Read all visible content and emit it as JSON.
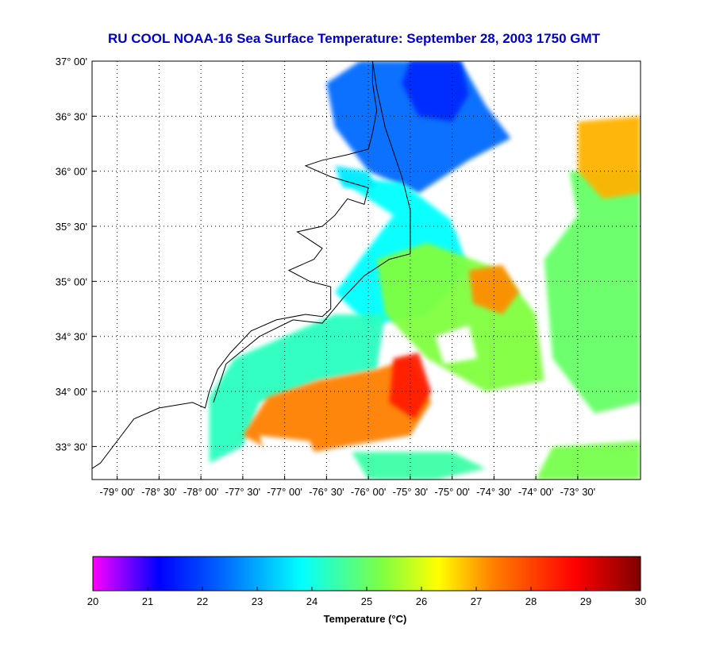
{
  "title": "RU COOL  NOAA-16  Sea Surface Temperature:  September 28, 2003 1750 GMT",
  "map": {
    "lon_range": [
      -79.3,
      -72.75
    ],
    "lat_range": [
      33.2,
      37.0
    ],
    "lat_ticks": [
      {
        "value": 37.0,
        "label": "37° 00'"
      },
      {
        "value": 36.5,
        "label": "36° 30'"
      },
      {
        "value": 36.0,
        "label": "36° 00'"
      },
      {
        "value": 35.5,
        "label": "35° 30'"
      },
      {
        "value": 35.0,
        "label": "35° 00'"
      },
      {
        "value": 34.5,
        "label": "34° 30'"
      },
      {
        "value": 34.0,
        "label": "34° 00'"
      },
      {
        "value": 33.5,
        "label": "33° 30'"
      }
    ],
    "lon_ticks": [
      {
        "value": -79.0,
        "label": "-79° 00'"
      },
      {
        "value": -78.5,
        "label": "-78° 30'"
      },
      {
        "value": -78.0,
        "label": "-78° 00'"
      },
      {
        "value": -77.5,
        "label": "-77° 30'"
      },
      {
        "value": -77.0,
        "label": "-77° 00'"
      },
      {
        "value": -76.5,
        "label": "-76° 30'"
      },
      {
        "value": -76.0,
        "label": "-76° 00'"
      },
      {
        "value": -75.5,
        "label": "-75° 30'"
      },
      {
        "value": -75.0,
        "label": "-75° 00'"
      },
      {
        "value": -74.5,
        "label": "-74° 30'"
      },
      {
        "value": -74.0,
        "label": "-74° 00'"
      },
      {
        "value": -73.5,
        "label": "-73° 30'"
      }
    ],
    "grid": "dotted"
  },
  "colorbar": {
    "min": 20,
    "max": 30,
    "ticks": [
      "20",
      "21",
      "22",
      "23",
      "24",
      "25",
      "26",
      "27",
      "28",
      "29",
      "30"
    ],
    "label": "Temperature (°C)",
    "stops": [
      {
        "t": 20.0,
        "color": "#ff00ff"
      },
      {
        "t": 21.2,
        "color": "#0000ff"
      },
      {
        "t": 22.3,
        "color": "#0060ff"
      },
      {
        "t": 23.8,
        "color": "#00ffff"
      },
      {
        "t": 25.3,
        "color": "#80ff40"
      },
      {
        "t": 26.3,
        "color": "#ffff00"
      },
      {
        "t": 27.3,
        "color": "#ff8000"
      },
      {
        "t": 28.8,
        "color": "#ff0000"
      },
      {
        "t": 30.0,
        "color": "#800000"
      }
    ]
  },
  "sst_regions": [
    {
      "name": "north-blue",
      "temp": 22.4,
      "pts": [
        [
          -76.1,
          37.0
        ],
        [
          -74.9,
          37.0
        ],
        [
          -74.6,
          36.6
        ],
        [
          -74.3,
          36.3
        ],
        [
          -74.8,
          36.1
        ],
        [
          -75.4,
          35.8
        ],
        [
          -76.0,
          36.0
        ],
        [
          -76.4,
          36.4
        ],
        [
          -76.5,
          36.8
        ]
      ]
    },
    {
      "name": "north-deep-blue",
      "temp": 21.7,
      "pts": [
        [
          -75.5,
          37.0
        ],
        [
          -74.9,
          37.0
        ],
        [
          -74.8,
          36.7
        ],
        [
          -75.0,
          36.45
        ],
        [
          -75.4,
          36.5
        ],
        [
          -75.6,
          36.8
        ]
      ]
    },
    {
      "name": "cape-hatteras-cyan",
      "temp": 23.8,
      "pts": [
        [
          -76.4,
          35.95
        ],
        [
          -75.6,
          35.9
        ],
        [
          -75.0,
          35.55
        ],
        [
          -74.8,
          35.1
        ],
        [
          -75.3,
          34.7
        ],
        [
          -76.0,
          34.6
        ],
        [
          -76.4,
          34.9
        ],
        [
          -76.0,
          35.3
        ],
        [
          -75.7,
          35.6
        ]
      ]
    },
    {
      "name": "offshore-green",
      "temp": 25.3,
      "pts": [
        [
          -75.9,
          35.2
        ],
        [
          -75.3,
          35.35
        ],
        [
          -74.4,
          35.1
        ],
        [
          -74.0,
          34.7
        ],
        [
          -73.9,
          34.1
        ],
        [
          -74.6,
          34.0
        ],
        [
          -75.3,
          34.3
        ],
        [
          -75.8,
          34.7
        ]
      ]
    },
    {
      "name": "east-green",
      "temp": 25.0,
      "pts": [
        [
          -73.6,
          36.0
        ],
        [
          -72.75,
          36.0
        ],
        [
          -72.75,
          33.9
        ],
        [
          -73.3,
          33.8
        ],
        [
          -73.8,
          34.3
        ],
        [
          -73.9,
          35.2
        ],
        [
          -73.5,
          35.6
        ]
      ]
    },
    {
      "name": "east-orange",
      "temp": 26.9,
      "pts": [
        [
          -73.5,
          36.45
        ],
        [
          -72.75,
          36.5
        ],
        [
          -72.75,
          35.8
        ],
        [
          -73.2,
          35.75
        ],
        [
          -73.5,
          36.0
        ]
      ]
    },
    {
      "name": "mid-orange-patch",
      "temp": 27.2,
      "pts": [
        [
          -74.8,
          35.1
        ],
        [
          -74.4,
          35.15
        ],
        [
          -74.2,
          34.9
        ],
        [
          -74.4,
          34.7
        ],
        [
          -74.75,
          34.8
        ]
      ]
    },
    {
      "name": "onslow-cyan",
      "temp": 24.3,
      "pts": [
        [
          -77.9,
          33.95
        ],
        [
          -77.6,
          34.3
        ],
        [
          -77.0,
          34.5
        ],
        [
          -76.4,
          34.7
        ],
        [
          -75.8,
          34.7
        ],
        [
          -75.9,
          34.2
        ],
        [
          -76.6,
          34.1
        ],
        [
          -77.3,
          33.9
        ],
        [
          -77.5,
          33.5
        ],
        [
          -77.9,
          33.35
        ]
      ]
    },
    {
      "name": "gulf-stream-orange",
      "temp": 27.3,
      "pts": [
        [
          -77.5,
          33.6
        ],
        [
          -77.2,
          33.95
        ],
        [
          -76.6,
          34.1
        ],
        [
          -75.9,
          34.2
        ],
        [
          -75.5,
          34.3
        ],
        [
          -75.25,
          33.9
        ],
        [
          -75.5,
          33.6
        ],
        [
          -76.3,
          33.5
        ],
        [
          -77.0,
          33.4
        ]
      ]
    },
    {
      "name": "gulf-stream-red",
      "temp": 28.5,
      "pts": [
        [
          -75.7,
          34.3
        ],
        [
          -75.4,
          34.35
        ],
        [
          -75.25,
          34.0
        ],
        [
          -75.45,
          33.75
        ],
        [
          -75.75,
          33.9
        ]
      ]
    },
    {
      "name": "south-cyan",
      "temp": 24.5,
      "pts": [
        [
          -76.2,
          33.45
        ],
        [
          -75.0,
          33.45
        ],
        [
          -74.6,
          33.3
        ],
        [
          -75.2,
          33.2
        ],
        [
          -76.0,
          33.2
        ]
      ]
    },
    {
      "name": "southeast-green",
      "temp": 25.2,
      "pts": [
        [
          -73.8,
          33.5
        ],
        [
          -72.75,
          33.55
        ],
        [
          -72.75,
          33.2
        ],
        [
          -74.0,
          33.2
        ]
      ]
    },
    {
      "name": "pamlico-cyan",
      "temp": 23.6,
      "pts": [
        [
          -76.4,
          36.05
        ],
        [
          -76.0,
          36.0
        ],
        [
          -75.9,
          35.85
        ],
        [
          -76.3,
          35.85
        ]
      ]
    }
  ],
  "cloud_gaps": [
    {
      "pts": [
        [
          -74.9,
          35.75
        ],
        [
          -73.9,
          35.85
        ],
        [
          -73.8,
          35.35
        ],
        [
          -74.5,
          35.35
        ],
        [
          -75.0,
          35.5
        ]
      ]
    },
    {
      "pts": [
        [
          -77.3,
          33.6
        ],
        [
          -76.7,
          33.55
        ],
        [
          -76.6,
          33.35
        ],
        [
          -77.2,
          33.3
        ]
      ]
    },
    {
      "pts": [
        [
          -75.2,
          34.5
        ],
        [
          -74.8,
          34.6
        ],
        [
          -74.7,
          34.3
        ],
        [
          -75.1,
          34.25
        ]
      ]
    },
    {
      "pts": [
        [
          -74.3,
          33.9
        ],
        [
          -73.5,
          33.95
        ],
        [
          -73.4,
          33.55
        ],
        [
          -74.1,
          33.55
        ]
      ]
    }
  ],
  "coastline": {
    "mainland": [
      [
        -79.3,
        33.3
      ],
      [
        -79.2,
        33.35
      ],
      [
        -79.0,
        33.55
      ],
      [
        -78.8,
        33.75
      ],
      [
        -78.5,
        33.85
      ],
      [
        -78.1,
        33.9
      ],
      [
        -77.95,
        33.85
      ],
      [
        -77.9,
        34.0
      ],
      [
        -77.8,
        34.2
      ],
      [
        -77.65,
        34.35
      ],
      [
        -77.4,
        34.55
      ],
      [
        -77.1,
        34.65
      ],
      [
        -76.75,
        34.7
      ],
      [
        -76.55,
        34.68
      ],
      [
        -76.45,
        34.75
      ],
      [
        -76.45,
        34.95
      ],
      [
        -76.7,
        35.0
      ],
      [
        -76.95,
        35.1
      ],
      [
        -76.65,
        35.2
      ],
      [
        -76.55,
        35.3
      ],
      [
        -76.85,
        35.45
      ],
      [
        -76.55,
        35.5
      ],
      [
        -76.4,
        35.6
      ],
      [
        -76.25,
        35.75
      ],
      [
        -76.05,
        35.7
      ],
      [
        -76.0,
        35.85
      ],
      [
        -76.45,
        35.95
      ],
      [
        -76.75,
        36.05
      ],
      [
        -76.55,
        36.1
      ],
      [
        -76.25,
        36.15
      ],
      [
        -76.0,
        36.2
      ],
      [
        -75.95,
        36.35
      ],
      [
        -75.9,
        36.55
      ],
      [
        -75.95,
        36.8
      ],
      [
        -75.95,
        37.0
      ]
    ],
    "outer_banks": [
      [
        -77.85,
        33.9
      ],
      [
        -77.7,
        34.25
      ],
      [
        -77.3,
        34.5
      ],
      [
        -76.9,
        34.65
      ],
      [
        -76.55,
        34.62
      ],
      [
        -76.3,
        34.85
      ],
      [
        -76.05,
        35.05
      ],
      [
        -75.75,
        35.2
      ],
      [
        -75.5,
        35.25
      ],
      [
        -75.5,
        35.65
      ],
      [
        -75.6,
        35.95
      ],
      [
        -75.8,
        36.4
      ],
      [
        -75.9,
        36.75
      ],
      [
        -75.95,
        37.0
      ]
    ]
  }
}
